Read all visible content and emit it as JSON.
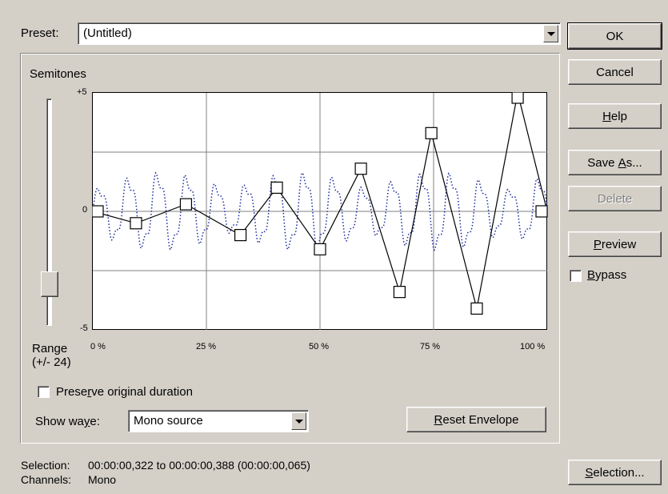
{
  "preset": {
    "label": "Preset:",
    "value": "(Untitled)"
  },
  "graph": {
    "semitones_label": "Semitones",
    "y_ticks": {
      "top": "+5",
      "mid": "0",
      "bottom": "-5"
    },
    "x_ticks": [
      "0 %",
      "25 %",
      "50 %",
      "75 %",
      "100 %"
    ],
    "range_label_line1": "Range",
    "range_label_line2": "(+/- 24)",
    "envelope_points": [
      {
        "x": 0,
        "y": 0.0
      },
      {
        "x": 9.5,
        "y": -0.5
      },
      {
        "x": 20.5,
        "y": 0.3
      },
      {
        "x": 32.5,
        "y": -1.0
      },
      {
        "x": 40.5,
        "y": 1.0
      },
      {
        "x": 50,
        "y": -1.6
      },
      {
        "x": 59,
        "y": 1.8
      },
      {
        "x": 67.5,
        "y": -3.4
      },
      {
        "x": 74.5,
        "y": 3.3
      },
      {
        "x": 84.5,
        "y": -4.1
      },
      {
        "x": 93.5,
        "y": 5.0
      },
      {
        "x": 100,
        "y": 0.0
      }
    ]
  },
  "preserve_duration": {
    "label_pre": "Prese",
    "label_ul": "r",
    "label_post": "ve original duration",
    "checked": false
  },
  "show_wave": {
    "label_pre": "Show wa",
    "label_ul": "y",
    "label_post": "e:",
    "value": "Mono source"
  },
  "buttons": {
    "ok": "OK",
    "cancel": "Cancel",
    "help_ul": "H",
    "help_rest": "elp",
    "saveas_pre": "Save ",
    "saveas_ul": "A",
    "saveas_post": "s...",
    "delete": "Delete",
    "preview_ul": "P",
    "preview_rest": "review",
    "reset_ul": "R",
    "reset_rest": "eset Envelope",
    "selection_ul": "S",
    "selection_rest": "election..."
  },
  "bypass": {
    "label_ul": "B",
    "label_rest": "ypass",
    "checked": false
  },
  "status": {
    "selection_label": "Selection:",
    "selection_value": "00:00:00,322 to 00:00:00,388 (00:00:00,065)",
    "channels_label": "Channels:",
    "channels_value": "Mono"
  },
  "colors": {
    "wave": "#1b2a9c",
    "envelope": "#000000",
    "grid": "#808080"
  }
}
